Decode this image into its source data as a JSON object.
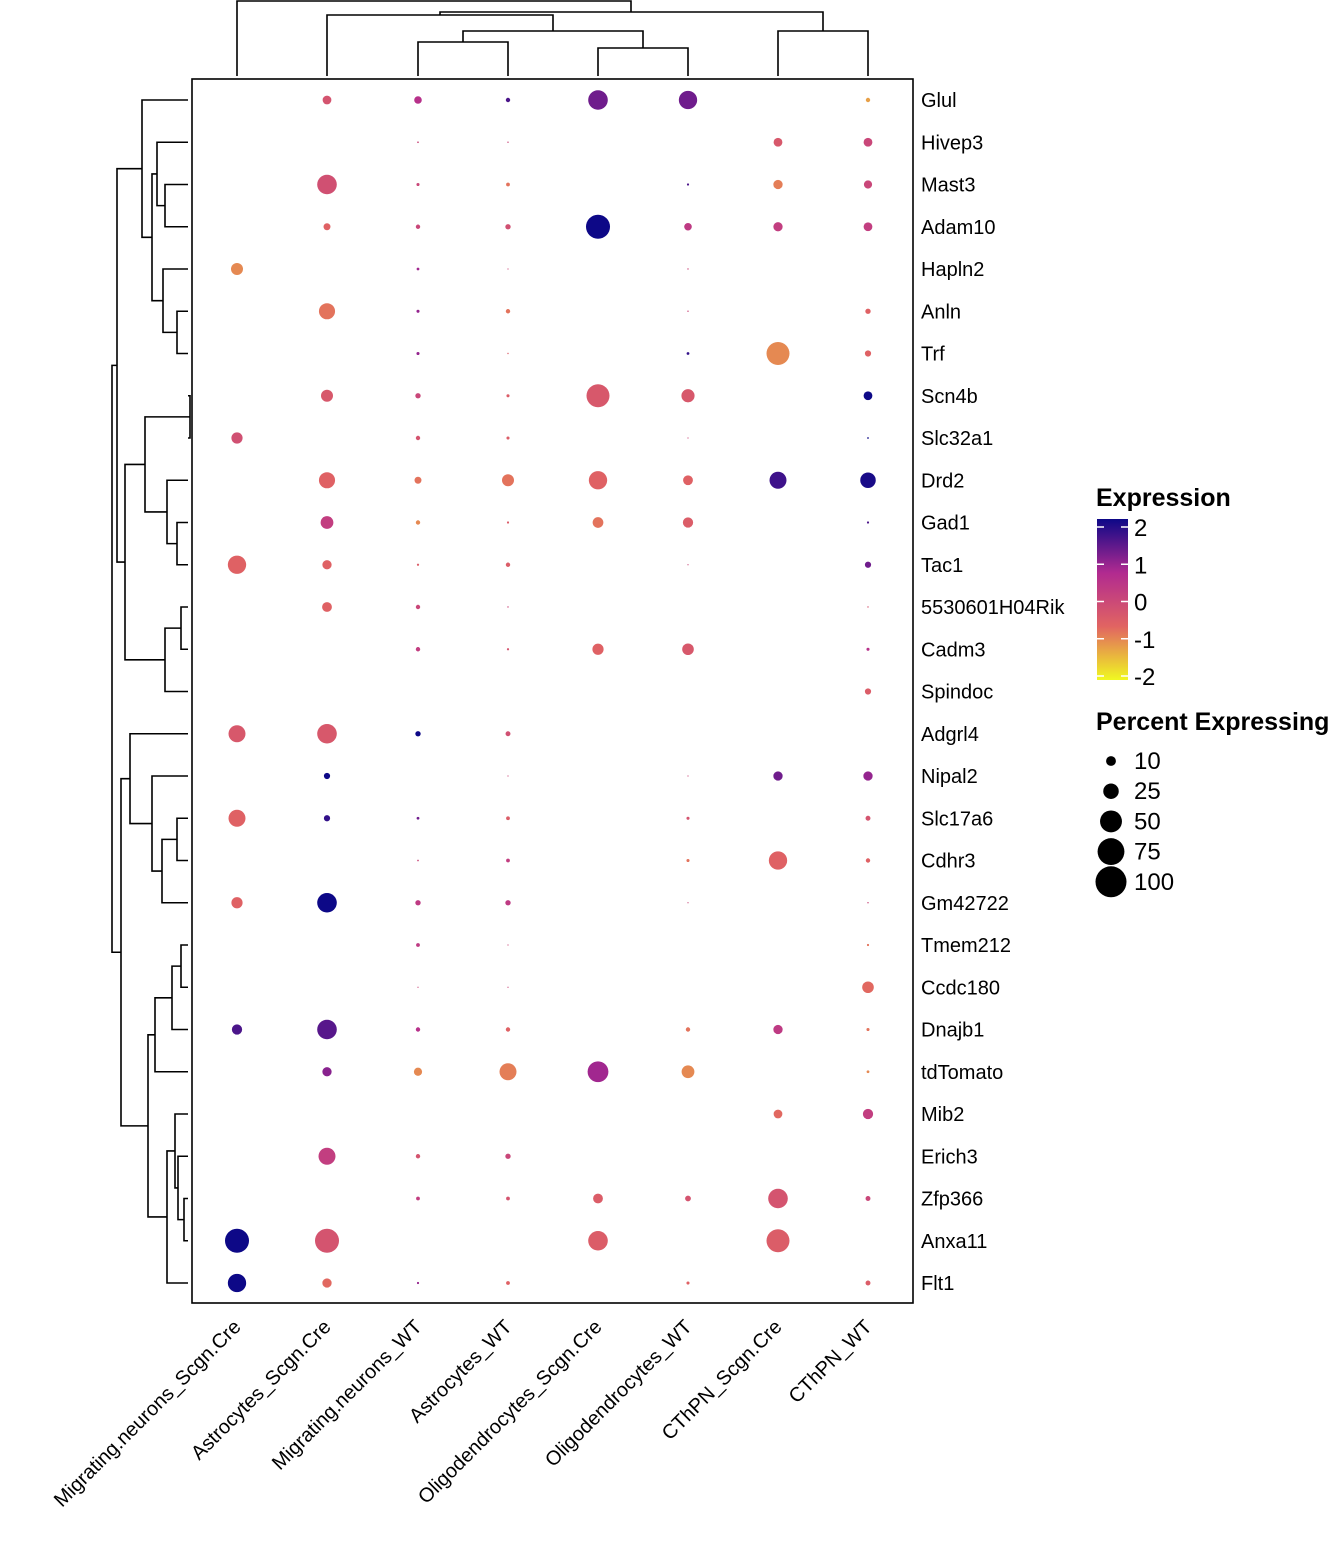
{
  "chart_data": {
    "type": "dotplot",
    "groups": [
      "Migrating.neurons_Scgn.Cre",
      "Astrocytes_Scgn.Cre",
      "Migrating.neurons_WT",
      "Astrocytes_WT",
      "Oligodendrocytes_Scgn.Cre",
      "Oligodendrocytes_WT",
      "CThPN_Scgn.Cre",
      "CThPN_WT"
    ],
    "genes": [
      "Glul",
      "Hivep3",
      "Mast3",
      "Adam10",
      "Hapln2",
      "Anln",
      "Trf",
      "Scn4b",
      "Slc32a1",
      "Drd2",
      "Gad1",
      "Tac1",
      "5530601H04Rik",
      "Cadm3",
      "Spindoc",
      "Adgrl4",
      "Nipal2",
      "Slc17a6",
      "Cdhr3",
      "Gm42722",
      "Tmem212",
      "Ccdc180",
      "Dnajb1",
      "tdTomato",
      "Mib2",
      "Erich3",
      "Zfp366",
      "Anxa11",
      "Flt1"
    ],
    "percent_expressing": [
      [
        0,
        8,
        6,
        2,
        40,
        35,
        0,
        2
      ],
      [
        0,
        0,
        0.3,
        0.2,
        0,
        0,
        8,
        8
      ],
      [
        0,
        40,
        1,
        1.5,
        0,
        0.5,
        9,
        7
      ],
      [
        0,
        5,
        2,
        3,
        60,
        6,
        9,
        8
      ],
      [
        15,
        0,
        0.8,
        0.1,
        0,
        0.2,
        0,
        0
      ],
      [
        0,
        27,
        1,
        2,
        0,
        0.2,
        0,
        3
      ],
      [
        0,
        0,
        1,
        0.2,
        0,
        0.8,
        55,
        4
      ],
      [
        0,
        15,
        3,
        1,
        55,
        18,
        0,
        8
      ],
      [
        13,
        0,
        2,
        1,
        0,
        0.1,
        0,
        0.3
      ],
      [
        0,
        27,
        5,
        15,
        35,
        10,
        30,
        25
      ],
      [
        0,
        17,
        2,
        0.5,
        12,
        11,
        0,
        0.5
      ],
      [
        35,
        9,
        0.5,
        2,
        0,
        0.1,
        0,
        4
      ],
      [
        0,
        10,
        2,
        0.2,
        0,
        0,
        0,
        0.2
      ],
      [
        0,
        0,
        2,
        0.5,
        13,
        14,
        0,
        1
      ],
      [
        0,
        0,
        0,
        0,
        0,
        0,
        0,
        4
      ],
      [
        30,
        40,
        3,
        2.5,
        0,
        0,
        0,
        0
      ],
      [
        0,
        4,
        0,
        0.1,
        0,
        0.1,
        9,
        9
      ],
      [
        30,
        4,
        0.8,
        1.5,
        0,
        1,
        0,
        2.5
      ],
      [
        0,
        0,
        0.3,
        1.5,
        0,
        1,
        35,
        2
      ],
      [
        13,
        40,
        3,
        3,
        0,
        0.1,
        0,
        0.2
      ],
      [
        0,
        0,
        1.5,
        0.1,
        0,
        0,
        0,
        0.5
      ],
      [
        0,
        0,
        0.1,
        0.1,
        0,
        0,
        0,
        14
      ],
      [
        11,
        40,
        2,
        2,
        0,
        2,
        9,
        1
      ],
      [
        0,
        9,
        7,
        30,
        45,
        17,
        0,
        0.8
      ],
      [
        0,
        0,
        0,
        0,
        0,
        0,
        8,
        11
      ],
      [
        0,
        30,
        2,
        3,
        0,
        0,
        0,
        0
      ],
      [
        0,
        0,
        1.5,
        1.5,
        10,
        3.5,
        40,
        2.5
      ],
      [
        60,
        60,
        0,
        0,
        40,
        0,
        55,
        0
      ],
      [
        35,
        9,
        0.5,
        1.5,
        0,
        1,
        0,
        2.5
      ]
    ],
    "avg_expression": [
      [
        0,
        -0.3,
        0.5,
        1.5,
        1.2,
        1.2,
        0,
        -1.2
      ],
      [
        0,
        0,
        0,
        0,
        0,
        0,
        -0.4,
        0
      ],
      [
        0,
        -0.2,
        0,
        -0.8,
        0,
        1.5,
        -0.9,
        0
      ],
      [
        0,
        -0.6,
        0,
        -0.2,
        2,
        0.3,
        0.2,
        0.2
      ],
      [
        -1.0,
        0,
        0.8,
        0,
        0,
        0,
        0,
        0
      ],
      [
        0,
        -0.8,
        0.9,
        -0.8,
        0,
        0,
        0,
        -0.6
      ],
      [
        0,
        0,
        0.9,
        -0.5,
        0,
        1.7,
        -1.0,
        -0.6
      ],
      [
        0,
        -0.4,
        0,
        -0.5,
        -0.4,
        -0.4,
        0,
        2
      ],
      [
        -0.2,
        0,
        -0.3,
        -0.5,
        0,
        0,
        0,
        2
      ],
      [
        0,
        -0.6,
        -0.8,
        -0.8,
        -0.6,
        -0.6,
        1.6,
        1.9
      ],
      [
        0,
        0.2,
        -1.0,
        -0.5,
        -0.8,
        -0.5,
        0,
        1.5
      ],
      [
        -0.6,
        -0.6,
        -0.5,
        -0.5,
        0,
        0,
        0,
        1.2
      ],
      [
        0,
        -0.6,
        0,
        0,
        0,
        0,
        0,
        -0.3
      ],
      [
        0,
        0,
        0.2,
        -0.3,
        -0.6,
        -0.4,
        0,
        0.5
      ],
      [
        0,
        0,
        0,
        0,
        0,
        0,
        0,
        -0.5
      ],
      [
        -0.4,
        -0.4,
        2,
        -0.2,
        0,
        0,
        0,
        0
      ],
      [
        0,
        2,
        0,
        0,
        0,
        0,
        1.2,
        0.9
      ],
      [
        -0.6,
        1.7,
        1.2,
        -0.5,
        0,
        -0.3,
        0,
        -0.3
      ],
      [
        0,
        0,
        0,
        0.2,
        0,
        -0.8,
        -0.6,
        -0.6
      ],
      [
        -0.6,
        2,
        0.3,
        0.3,
        0,
        0,
        0,
        0
      ],
      [
        0,
        0,
        0.3,
        0,
        0,
        0,
        0,
        -0.8
      ],
      [
        0,
        0,
        0,
        0,
        0,
        0,
        0,
        -0.7
      ],
      [
        1.5,
        1.4,
        0.5,
        -0.6,
        0,
        -0.8,
        0.3,
        -0.8
      ],
      [
        0,
        1.0,
        -1.0,
        -0.9,
        0.8,
        -1.0,
        0,
        -1.0
      ],
      [
        0,
        0,
        0,
        0,
        0,
        0,
        -0.7,
        0.2
      ],
      [
        0,
        0.2,
        -0.3,
        0,
        0,
        0,
        0,
        0
      ],
      [
        0,
        0,
        0.2,
        -0.3,
        -0.5,
        -0.3,
        -0.3,
        0
      ],
      [
        2,
        -0.3,
        0,
        0,
        -0.5,
        0,
        -0.5,
        0
      ],
      [
        2,
        -0.7,
        0.9,
        -0.6,
        0,
        -0.6,
        0,
        -0.5
      ]
    ],
    "legend": {
      "color_title": "Expression",
      "color_ticks": [
        "2",
        "1",
        "0",
        "-1",
        "-2"
      ],
      "color_range": [
        -2,
        2
      ],
      "color_stops": [
        "#f0f921",
        "#e16462",
        "#b12a90",
        "#0d0887"
      ],
      "size_title": "Percent Expressing",
      "size_ticks": [
        "10",
        "25",
        "50",
        "75",
        "100"
      ],
      "size_values": [
        10,
        25,
        50,
        75,
        100
      ]
    },
    "row_dendrogram": true,
    "column_dendrogram": true,
    "title": "",
    "xlabel": "",
    "ylabel": ""
  }
}
